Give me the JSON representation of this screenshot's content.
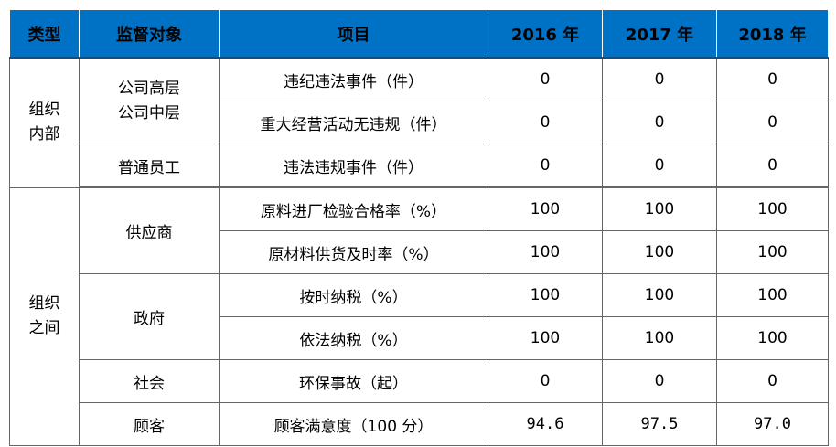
{
  "headers": [
    "类型",
    "监督对象",
    "项目",
    "2016 年",
    "2017 年",
    "2018 年"
  ],
  "groups": [
    {
      "type_lines": [
        "组织",
        "内部"
      ],
      "targets": [
        {
          "name_lines": [
            "公司高层",
            "公司中层"
          ],
          "rows": [
            {
              "item": "违纪违法事件（件）",
              "v2016": "0",
              "v2017": "0",
              "v2018": "0"
            },
            {
              "item": "重大经营活动无违规（件）",
              "v2016": "0",
              "v2017": "0",
              "v2018": "0"
            }
          ]
        },
        {
          "name_lines": [
            "普通员工"
          ],
          "rows": [
            {
              "item": "违法违规事件（件）",
              "v2016": "0",
              "v2017": "0",
              "v2018": "0"
            }
          ]
        }
      ]
    },
    {
      "type_lines": [
        "组织",
        "之间"
      ],
      "targets": [
        {
          "name_lines": [
            "供应商"
          ],
          "rows": [
            {
              "item": "原料进厂检验合格率（%）",
              "v2016": "100",
              "v2017": "100",
              "v2018": "100"
            },
            {
              "item": "原材料供货及时率（%）",
              "v2016": "100",
              "v2017": "100",
              "v2018": "100"
            }
          ]
        },
        {
          "name_lines": [
            "政府"
          ],
          "rows": [
            {
              "item": "按时纳税（%）",
              "v2016": "100",
              "v2017": "100",
              "v2018": "100"
            },
            {
              "item": "依法纳税（%）",
              "v2016": "100",
              "v2017": "100",
              "v2018": "100"
            }
          ]
        },
        {
          "name_lines": [
            "社会"
          ],
          "rows": [
            {
              "item": "环保事故（起）",
              "v2016": "0",
              "v2017": "0",
              "v2018": "0"
            }
          ]
        },
        {
          "name_lines": [
            "顾客"
          ],
          "rows": [
            {
              "item": "顾客满意度（100 分）",
              "v2016": "94.6",
              "v2017": "97.5",
              "v2018": "97.0"
            }
          ]
        }
      ]
    }
  ]
}
